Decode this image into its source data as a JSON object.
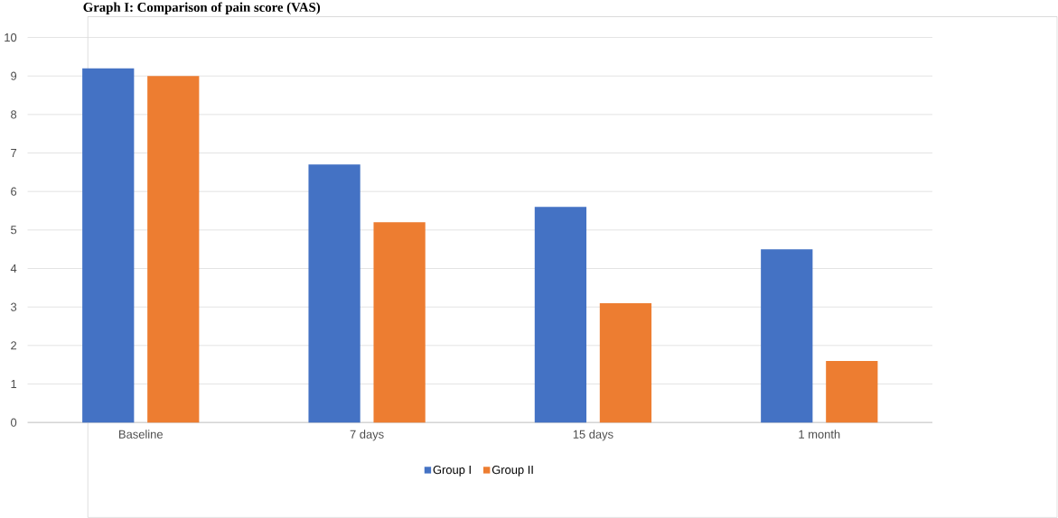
{
  "chart_data": {
    "type": "bar",
    "title": "Graph I: Comparison of pain score (VAS)",
    "categories": [
      "Baseline",
      "7 days",
      "15 days",
      "1 month"
    ],
    "series": [
      {
        "name": "Group I",
        "color": "#4472c4",
        "values": [
          9.2,
          6.7,
          5.6,
          4.5
        ]
      },
      {
        "name": "Group II",
        "color": "#ed7d31",
        "values": [
          9.0,
          5.2,
          3.1,
          1.6
        ]
      }
    ],
    "ylim": [
      0,
      10
    ],
    "yticks": [
      0,
      1,
      2,
      3,
      4,
      5,
      6,
      7,
      8,
      9,
      10
    ],
    "grid": "y",
    "legend": "bottom"
  }
}
